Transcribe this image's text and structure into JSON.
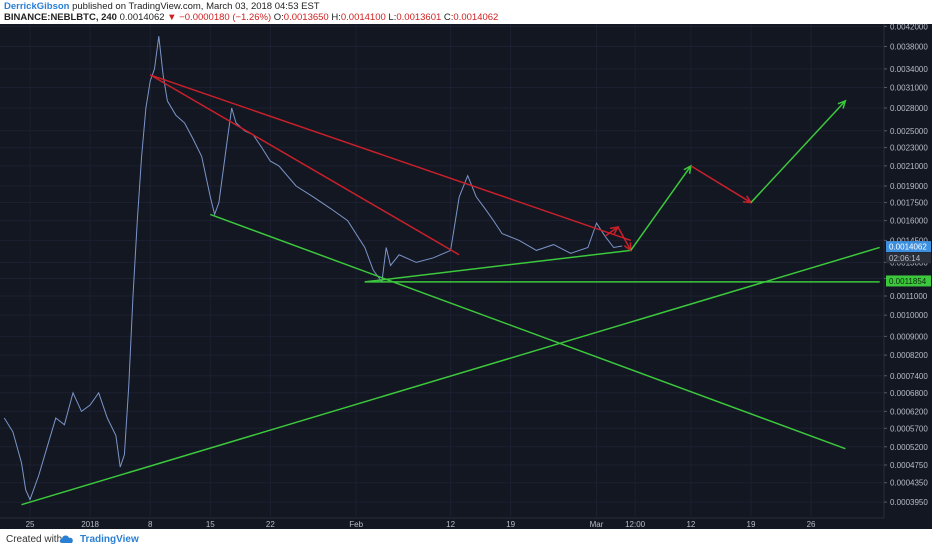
{
  "header": {
    "author": "DerrickGibson",
    "published_text": "published on TradingView.com, March 03, 2018 04:53 EST",
    "symbol": "BINANCE:NEBLBTC, 240",
    "last": "0.0014062",
    "change": "−0.0000180 (−1.26%)",
    "o_label": "O:",
    "o_value": "0.0013650",
    "h_label": "H:",
    "h_value": "0.0014100",
    "l_label": "L:",
    "l_value": "0.0013601",
    "c_label": "C:",
    "c_value": "0.0014062"
  },
  "footer": {
    "created_with": "Created with",
    "brand": "TradingView"
  },
  "colors": {
    "background": "#131722",
    "price_line": "#7b95c9",
    "trend_red": "#c8202a",
    "trend_green": "#3cc83c",
    "axis_text": "#b8bcc8"
  },
  "chart_data": {
    "type": "line",
    "title": "",
    "xlabel": "",
    "ylabel": "",
    "ylim": [
      0.000365,
      0.00425
    ],
    "y_ticks": [
      "0.0042000",
      "0.0038000",
      "0.0034000",
      "0.0031000",
      "0.0028000",
      "0.0025000",
      "0.0023000",
      "0.0021000",
      "0.0019000",
      "0.0017500",
      "0.0016000",
      "0.0014500",
      "0.0013000",
      "0.0012000",
      "0.0011000",
      "0.0010000",
      "0.0009000",
      "0.0008200",
      "0.0007400",
      "0.0006800",
      "0.0006200",
      "0.0005700",
      "0.0005200",
      "0.0004750",
      "0.0004350",
      "0.0003950"
    ],
    "x_ticks": [
      {
        "label": "25",
        "day": -7
      },
      {
        "label": "2018",
        "day": 0
      },
      {
        "label": "8",
        "day": 7
      },
      {
        "label": "15",
        "day": 14
      },
      {
        "label": "22",
        "day": 21
      },
      {
        "label": "Feb",
        "day": 31
      },
      {
        "label": "12",
        "day": 42
      },
      {
        "label": "19",
        "day": 49
      },
      {
        "label": "Mar",
        "day": 59
      },
      {
        "label": "12:00",
        "day": 63.5
      },
      {
        "label": "12",
        "day": 70
      },
      {
        "label": "19",
        "day": 77
      },
      {
        "label": "26",
        "day": 84
      }
    ],
    "x_note": "x values are days relative to 2018-01-01",
    "price_series": {
      "name": "NEBLBTC",
      "x": [
        -10,
        -9,
        -8,
        -7.5,
        -7,
        -6,
        -5,
        -4,
        -3,
        -2,
        -1,
        0,
        1,
        2,
        3,
        3.5,
        4,
        4.5,
        5,
        5.5,
        6,
        6.5,
        7,
        7.5,
        8,
        8.5,
        9,
        10,
        11,
        12,
        13,
        14,
        14.5,
        15,
        16,
        16.5,
        17,
        18,
        19,
        20,
        21,
        22,
        24,
        26,
        28,
        30,
        32,
        33,
        34,
        34.5,
        35,
        36,
        38,
        40,
        42,
        43,
        44,
        45,
        46,
        47,
        48,
        50,
        52,
        54,
        56,
        58,
        59,
        60,
        61,
        62
      ],
      "y": [
        0.0006,
        0.00056,
        0.00048,
        0.00042,
        0.0004,
        0.00045,
        0.00052,
        0.0006,
        0.00058,
        0.00068,
        0.00062,
        0.00064,
        0.00068,
        0.0006,
        0.00055,
        0.00047,
        0.0005,
        0.0007,
        0.0011,
        0.0016,
        0.0022,
        0.0028,
        0.0032,
        0.0034,
        0.004,
        0.0033,
        0.0029,
        0.0027,
        0.0026,
        0.0024,
        0.0022,
        0.0018,
        0.00165,
        0.00175,
        0.0024,
        0.0028,
        0.0026,
        0.0025,
        0.00245,
        0.0023,
        0.00215,
        0.0021,
        0.0019,
        0.0018,
        0.0017,
        0.0016,
        0.0014,
        0.00125,
        0.00118,
        0.0014,
        0.00128,
        0.00135,
        0.0013,
        0.00133,
        0.00138,
        0.0018,
        0.002,
        0.0018,
        0.0017,
        0.0016,
        0.0015,
        0.00145,
        0.00138,
        0.00142,
        0.00136,
        0.0014,
        0.00158,
        0.00148,
        0.0014,
        0.00141
      ]
    },
    "trendlines": [
      {
        "color": "red",
        "points": [
          [
            7,
            0.0033
          ],
          [
            63,
            0.00145
          ]
        ]
      },
      {
        "color": "red",
        "points": [
          [
            7,
            0.0033
          ],
          [
            43,
            0.00135
          ]
        ]
      },
      {
        "color": "green",
        "points": [
          [
            14,
            0.00165
          ],
          [
            88,
            0.000515
          ]
        ]
      },
      {
        "color": "green",
        "points": [
          [
            32,
            0.00118
          ],
          [
            63,
            0.00138
          ]
        ]
      },
      {
        "color": "green",
        "points": [
          [
            -8,
            0.00039
          ],
          [
            92,
            0.0014
          ]
        ]
      },
      {
        "color": "green",
        "points": [
          [
            32,
            0.00118
          ],
          [
            92,
            0.00118
          ]
        ]
      }
    ],
    "projection": [
      {
        "color": "red",
        "points": [
          [
            60,
            0.00148
          ],
          [
            61.5,
            0.00155
          ]
        ]
      },
      {
        "color": "red",
        "points": [
          [
            61.5,
            0.00155
          ],
          [
            63,
            0.00138
          ]
        ]
      },
      {
        "color": "green",
        "points": [
          [
            63,
            0.00138
          ],
          [
            70,
            0.0021
          ]
        ]
      },
      {
        "color": "red",
        "points": [
          [
            70,
            0.0021
          ],
          [
            77,
            0.00175
          ]
        ]
      },
      {
        "color": "green",
        "points": [
          [
            77,
            0.00175
          ],
          [
            88,
            0.0029
          ]
        ]
      }
    ],
    "price_labels": [
      {
        "text": "0.0014062",
        "value": 0.0014062,
        "style": "blue"
      },
      {
        "text": "02:06:14",
        "value": 0.00133,
        "style": "gray"
      },
      {
        "text": "0.0011854",
        "value": 0.0011854,
        "style": "green"
      }
    ]
  }
}
